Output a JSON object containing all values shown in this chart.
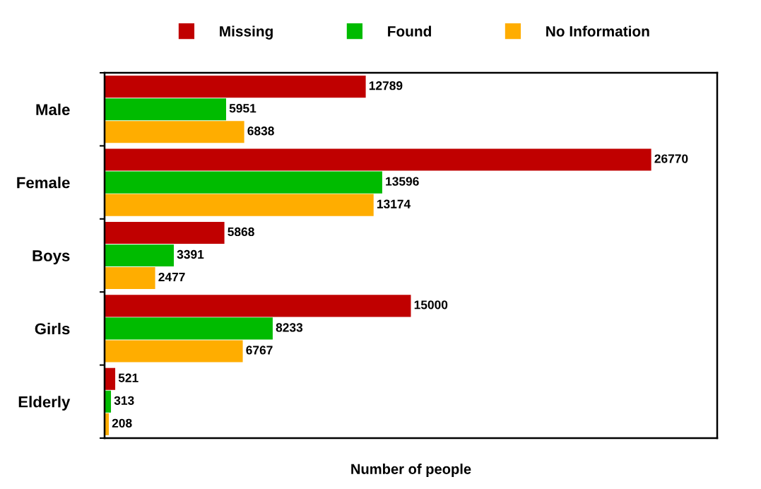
{
  "chart_data": {
    "type": "bar",
    "orientation": "horizontal",
    "xlabel": "Number of people",
    "categories": [
      "Male",
      "Female",
      "Boys",
      "Girls",
      "Elderly"
    ],
    "series": [
      {
        "name": "Missing",
        "color": "#c00000",
        "values": [
          12789,
          26770,
          5868,
          15000,
          521
        ]
      },
      {
        "name": "Found",
        "color": "#00bb00",
        "values": [
          5951,
          13596,
          3391,
          8233,
          313
        ]
      },
      {
        "name": "No Information",
        "color": "#ffad00",
        "values": [
          6838,
          13174,
          2477,
          6767,
          208
        ]
      }
    ],
    "xlim": [
      0,
      30000
    ],
    "tick_labels": "y",
    "data_labels": true,
    "legend": "top",
    "grid": false
  }
}
